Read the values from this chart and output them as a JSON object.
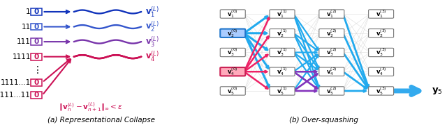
{
  "fig_width": 6.4,
  "fig_height": 1.93,
  "bg_color": "#ffffff",
  "caption_a": "(a) Representational Collapse",
  "caption_b": "(b) Over-squashing",
  "wave_colors": [
    "#1133bb",
    "#3355cc",
    "#7733aa",
    "#cc1155"
  ],
  "norm_color": "#cc1155",
  "blue_node_face": "#aaccff",
  "blue_node_edge": "#2277cc",
  "pink_node_face": "#ffaabb",
  "pink_node_edge": "#cc2255",
  "gray_edge": "#cccccc",
  "blue_edge": "#22aaee",
  "pink_edge": "#ee2266",
  "purple_edge": "#8833bb",
  "final_arrow": "#33aaee"
}
